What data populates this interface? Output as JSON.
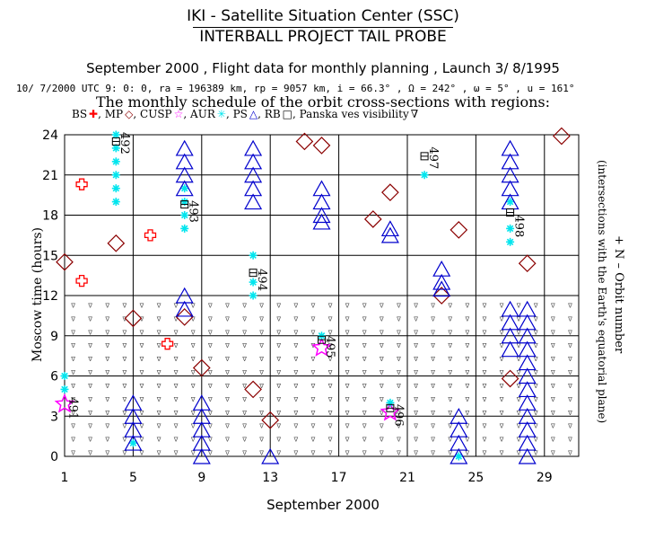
{
  "header": {
    "line1": "IKI - Satellite Situation Center (SSC)",
    "line2": "INTERBALL PROJECT TAIL PROBE",
    "line3": "September 2000 ,  Flight data for monthly planning ,   Launch  3/ 8/1995",
    "line4": "10/ 7/2000 UTC  9: 0: 0, ra = 196389 km, rp =   9057 km, i = 66.3° , Ω = 242° , ω =    5° , u = 161°",
    "line5": "The monthly schedule of the orbit cross-sections with regions:"
  },
  "legend": {
    "items": [
      {
        "label": "BS",
        "symbol": "✚",
        "color": "#ff0000"
      },
      {
        "label": "MP",
        "symbol": "◇",
        "color": "#8b0000"
      },
      {
        "label": "CUSP",
        "symbol": "☆",
        "color": "#ff00ff"
      },
      {
        "label": "AUR",
        "symbol": "✳",
        "color": "#00e5ee"
      },
      {
        "label": "PS",
        "symbol": "△",
        "color": "#0000cd"
      },
      {
        "label": "RB",
        "symbol": "□",
        "color": "#000000"
      },
      {
        "label": "Panska ves visibility",
        "symbol": "∇",
        "color": "#000000"
      }
    ]
  },
  "axes": {
    "ylabel": "Moscow time (hours)",
    "xlabel": "September 2000",
    "right_label1": "+ N – Orbit number",
    "right_label2": "(intersections with the Earth's equatorial plane)"
  },
  "chart_data": {
    "type": "scatter",
    "title": "The monthly schedule of the orbit cross-sections with regions",
    "xlabel": "September 2000",
    "ylabel": "Moscow time (hours)",
    "xlim": [
      1,
      31
    ],
    "ylim": [
      0,
      24
    ],
    "xticks": [
      1,
      5,
      9,
      13,
      17,
      21,
      25,
      29
    ],
    "yticks": [
      0,
      3,
      6,
      9,
      12,
      15,
      18,
      21,
      24
    ],
    "series": [
      {
        "name": "BS",
        "color": "#ff0000",
        "marker": "cross",
        "points": [
          [
            2.0,
            20.3
          ],
          [
            6.0,
            16.5
          ],
          [
            2.0,
            13.1
          ],
          [
            7.0,
            8.4
          ]
        ]
      },
      {
        "name": "MP",
        "color": "#8b0000",
        "marker": "diamond",
        "points": [
          [
            4.0,
            15.9
          ],
          [
            1.0,
            14.5
          ],
          [
            5.0,
            10.3
          ],
          [
            8.0,
            10.4
          ],
          [
            9.0,
            6.6
          ],
          [
            12.0,
            5.0
          ],
          [
            13.0,
            2.7
          ],
          [
            15.0,
            23.5
          ],
          [
            16.0,
            23.2
          ],
          [
            19.0,
            17.7
          ],
          [
            20.0,
            19.7
          ],
          [
            24.0,
            16.9
          ],
          [
            23.0,
            12.0
          ],
          [
            27.0,
            5.8
          ],
          [
            28.0,
            14.4
          ],
          [
            30.0,
            23.9
          ]
        ]
      },
      {
        "name": "CUSP",
        "color": "#ff00ff",
        "marker": "star",
        "points": [
          [
            1.0,
            3.9
          ],
          [
            16.0,
            8.1
          ],
          [
            20.0,
            3.3
          ]
        ]
      },
      {
        "name": "AUR",
        "color": "#00e5ee",
        "marker": "asterisk",
        "points": [
          [
            4.0,
            24.0
          ],
          [
            4.0,
            23.0
          ],
          [
            4.0,
            22.0
          ],
          [
            4.0,
            21.0
          ],
          [
            4.0,
            20.0
          ],
          [
            4.0,
            19.0
          ],
          [
            1.0,
            6.0
          ],
          [
            1.0,
            5.0
          ],
          [
            8.0,
            20.0
          ],
          [
            8.0,
            19.0
          ],
          [
            8.0,
            18.0
          ],
          [
            8.0,
            17.0
          ],
          [
            12.0,
            15.0
          ],
          [
            12.0,
            13.0
          ],
          [
            12.0,
            12.0
          ],
          [
            16.0,
            9.0
          ],
          [
            5.0,
            1.0
          ],
          [
            20.0,
            4.0
          ],
          [
            22.0,
            21.0
          ],
          [
            27.0,
            19.0
          ],
          [
            27.0,
            17.0
          ],
          [
            27.0,
            16.0
          ],
          [
            24.0,
            0.0
          ]
        ]
      },
      {
        "name": "PS",
        "color": "#0000cd",
        "marker": "triangle",
        "points": [
          [
            8.0,
            23.0
          ],
          [
            8.0,
            22.0
          ],
          [
            8.0,
            21.0
          ],
          [
            8.0,
            20.0
          ],
          [
            8.0,
            12.0
          ],
          [
            8.0,
            11.0
          ],
          [
            5.0,
            4.0
          ],
          [
            5.0,
            3.0
          ],
          [
            5.0,
            2.0
          ],
          [
            5.0,
            1.0
          ],
          [
            9.0,
            4.0
          ],
          [
            9.0,
            3.0
          ],
          [
            9.0,
            2.0
          ],
          [
            9.0,
            1.0
          ],
          [
            9.0,
            0.0
          ],
          [
            12.0,
            23.0
          ],
          [
            12.0,
            22.0
          ],
          [
            12.0,
            21.0
          ],
          [
            12.0,
            20.0
          ],
          [
            12.0,
            19.0
          ],
          [
            13.0,
            0.0
          ],
          [
            16.0,
            20.0
          ],
          [
            16.0,
            19.0
          ],
          [
            16.0,
            18.0
          ],
          [
            16.0,
            17.5
          ],
          [
            20.0,
            17.0
          ],
          [
            20.0,
            16.5
          ],
          [
            23.0,
            14.0
          ],
          [
            23.0,
            13.0
          ],
          [
            23.0,
            12.5
          ],
          [
            24.0,
            3.0
          ],
          [
            24.0,
            2.0
          ],
          [
            24.0,
            1.0
          ],
          [
            24.0,
            0.0
          ],
          [
            27.0,
            23.0
          ],
          [
            27.0,
            22.0
          ],
          [
            27.0,
            21.0
          ],
          [
            27.0,
            20.0
          ],
          [
            27.0,
            19.0
          ],
          [
            27.0,
            11.0
          ],
          [
            27.0,
            10.0
          ],
          [
            27.0,
            9.0
          ],
          [
            27.0,
            8.0
          ],
          [
            28.0,
            11.0
          ],
          [
            28.0,
            10.0
          ],
          [
            28.0,
            9.0
          ],
          [
            28.0,
            8.0
          ],
          [
            28.0,
            7.0
          ],
          [
            28.0,
            6.0
          ],
          [
            28.0,
            5.0
          ],
          [
            28.0,
            4.0
          ],
          [
            28.0,
            3.0
          ],
          [
            28.0,
            2.0
          ],
          [
            28.0,
            1.0
          ],
          [
            28.0,
            0.0
          ]
        ]
      },
      {
        "name": "RB",
        "color": "#000000",
        "marker": "square",
        "points": [
          [
            4.0,
            23.5
          ],
          [
            8.0,
            18.8
          ],
          [
            12.0,
            13.7
          ],
          [
            16.0,
            8.7
          ],
          [
            20.0,
            3.6
          ],
          [
            22.0,
            22.4
          ],
          [
            27.0,
            18.2
          ]
        ]
      }
    ],
    "visibility": {
      "name": "Panska ves visibility",
      "marker": "nabla",
      "color": "#000000",
      "days": [
        1,
        31
      ],
      "hours": [
        0,
        12
      ]
    },
    "orbit_labels": [
      {
        "orbit": "491",
        "x": 1.3,
        "y": 4.4
      },
      {
        "orbit": "492",
        "x": 4.3,
        "y": 24.2
      },
      {
        "orbit": "493",
        "x": 8.3,
        "y": 19.1
      },
      {
        "orbit": "494",
        "x": 12.3,
        "y": 14.0
      },
      {
        "orbit": "495",
        "x": 16.3,
        "y": 9.0
      },
      {
        "orbit": "496",
        "x": 20.3,
        "y": 3.9
      },
      {
        "orbit": "497",
        "x": 22.3,
        "y": 23.1
      },
      {
        "orbit": "498",
        "x": 27.3,
        "y": 18.0
      }
    ]
  }
}
